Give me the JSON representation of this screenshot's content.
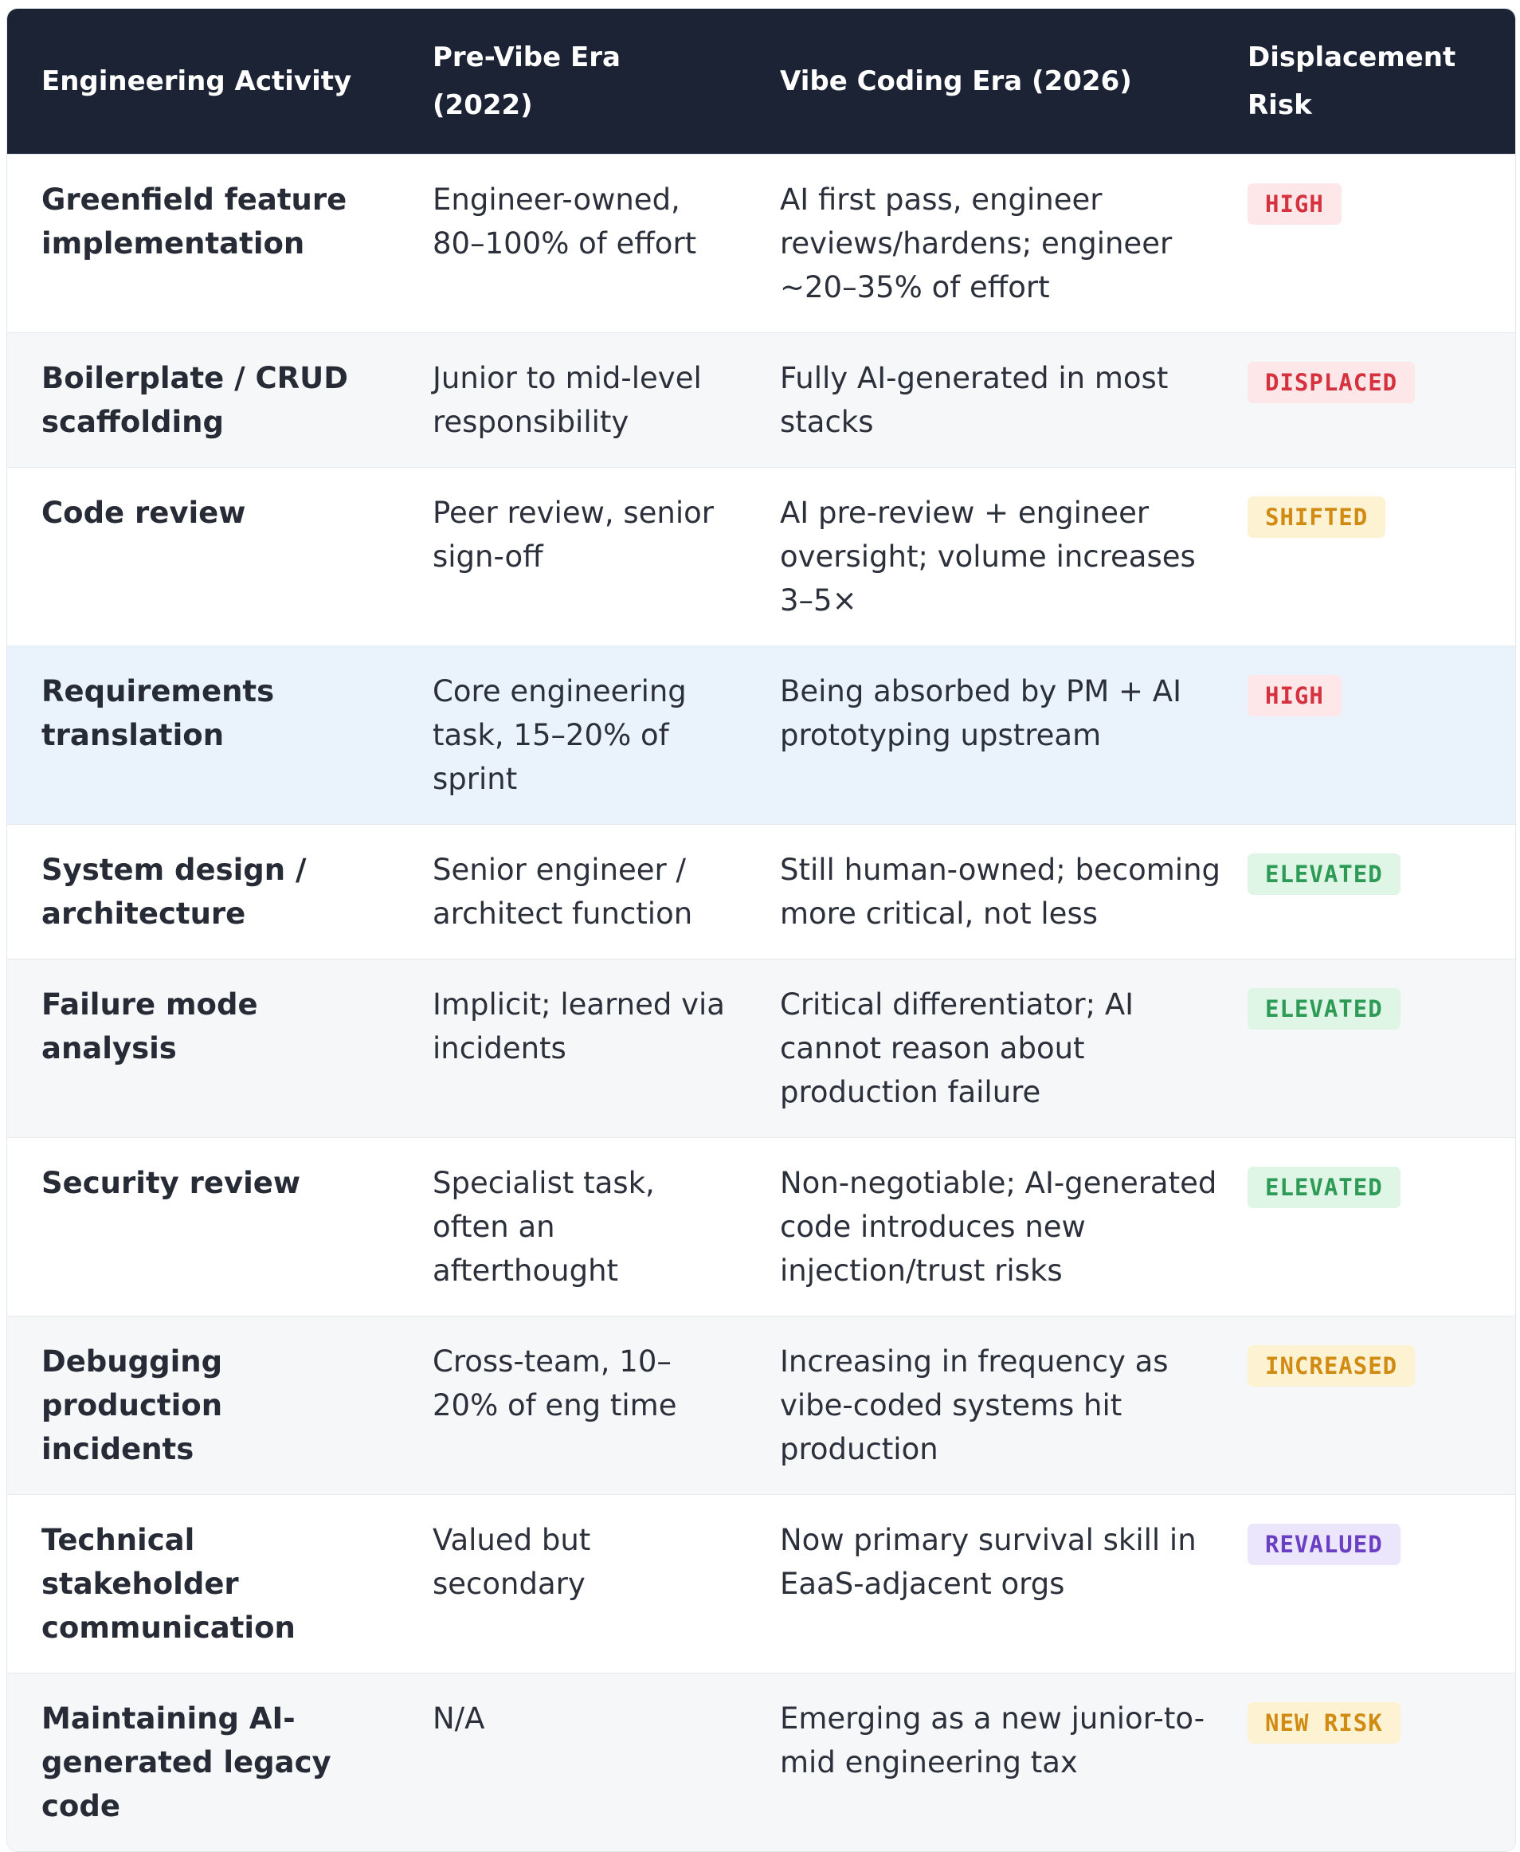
{
  "headers": {
    "activity": "Engineering Activity",
    "pre": "Pre-Vibe Era (2022)",
    "vibe": "Vibe Coding Era (2026)",
    "risk": "Displacement Risk"
  },
  "rows": [
    {
      "activity": "Greenfield feature implementation",
      "pre": "Engineer-owned, 80–100% of effort",
      "vibe": "AI first pass, engineer reviews/hardens; engineer ~20–35% of effort",
      "risk": "HIGH",
      "risk_color": "#d5323f"
    },
    {
      "activity": "Boilerplate / CRUD scaffolding",
      "pre": "Junior to mid-level responsibility",
      "vibe": "Fully AI-generated in most stacks",
      "risk": "DISPLACED",
      "risk_color": "#d5323f"
    },
    {
      "activity": "Code review",
      "pre": "Peer review, senior sign-off",
      "vibe": "AI pre-review + engineer oversight; volume increases 3–5×",
      "risk": "SHIFTED",
      "risk_color": "#d18b13"
    },
    {
      "activity": "Requirements translation",
      "pre": "Core engineering task, 15–20% of sprint",
      "vibe": "Being absorbed by PM + AI prototyping upstream",
      "risk": "HIGH",
      "risk_color": "#d5323f"
    },
    {
      "activity": "System design / architecture",
      "pre": "Senior engineer / architect function",
      "vibe": "Still human-owned; becoming more critical, not less",
      "risk": "ELEVATED",
      "risk_color": "#2d9b55"
    },
    {
      "activity": "Failure mode analysis",
      "pre": "Implicit; learned via incidents",
      "vibe": "Critical differentiator; AI cannot reason about production failure",
      "risk": "ELEVATED",
      "risk_color": "#2d9b55"
    },
    {
      "activity": "Security review",
      "pre": "Specialist task, often an afterthought",
      "vibe": "Non-negotiable; AI-generated code introduces new injection/trust risks",
      "risk": "ELEVATED",
      "risk_color": "#2d9b55"
    },
    {
      "activity": "Debugging production incidents",
      "pre": "Cross-team, 10–20% of eng time",
      "vibe": "Increasing in frequency as vibe-coded systems hit production",
      "risk": "INCREASED",
      "risk_color": "#d18b13"
    },
    {
      "activity": "Technical stakeholder communication",
      "pre": "Valued but secondary",
      "vibe": "Now primary survival skill in EaaS-adjacent orgs",
      "risk": "REVALUED",
      "risk_color": "#6a3fc4"
    },
    {
      "activity": "Maintaining AI-generated legacy code",
      "pre": "N/A",
      "vibe": "Emerging as a new junior-to-mid engineering tax",
      "risk": "NEW RISK",
      "risk_color": "#d18b13"
    }
  ]
}
